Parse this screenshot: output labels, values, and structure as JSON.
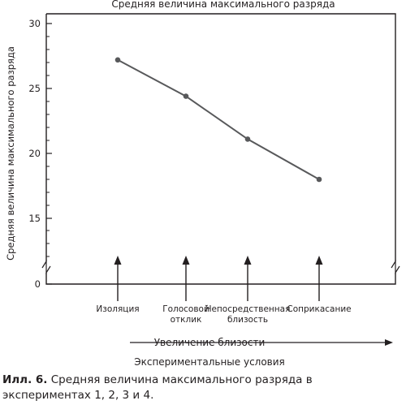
{
  "chart_data": {
    "type": "line",
    "title": "Средняя величина максимального разряда",
    "ylabel": "Средняя величина максимального разряда",
    "categories": [
      "Изоляция",
      "Голосовой отклик",
      "Непосредственная близость",
      "Соприкасание"
    ],
    "category_lines": [
      [
        "Изоляция"
      ],
      [
        "Голосовой",
        "отклик"
      ],
      [
        "Непосредственная",
        "близость"
      ],
      [
        "Соприкасание"
      ]
    ],
    "series": [
      {
        "values": [
          27.2,
          24.4,
          21.1,
          18.0
        ]
      }
    ],
    "ylim": [
      15,
      30
    ],
    "yticks": [
      0,
      15,
      20,
      25,
      30
    ],
    "axis_break": true,
    "arrow_label": "Увеличение близости",
    "xlabel": "Экспериментальные условия",
    "colors": {
      "ink": "#231f20",
      "line": "#58595b"
    }
  },
  "caption": {
    "label": "Илл. 6.",
    "text": " Средняя величина максимального разряда в экспериментах 1, 2, 3 и 4."
  }
}
